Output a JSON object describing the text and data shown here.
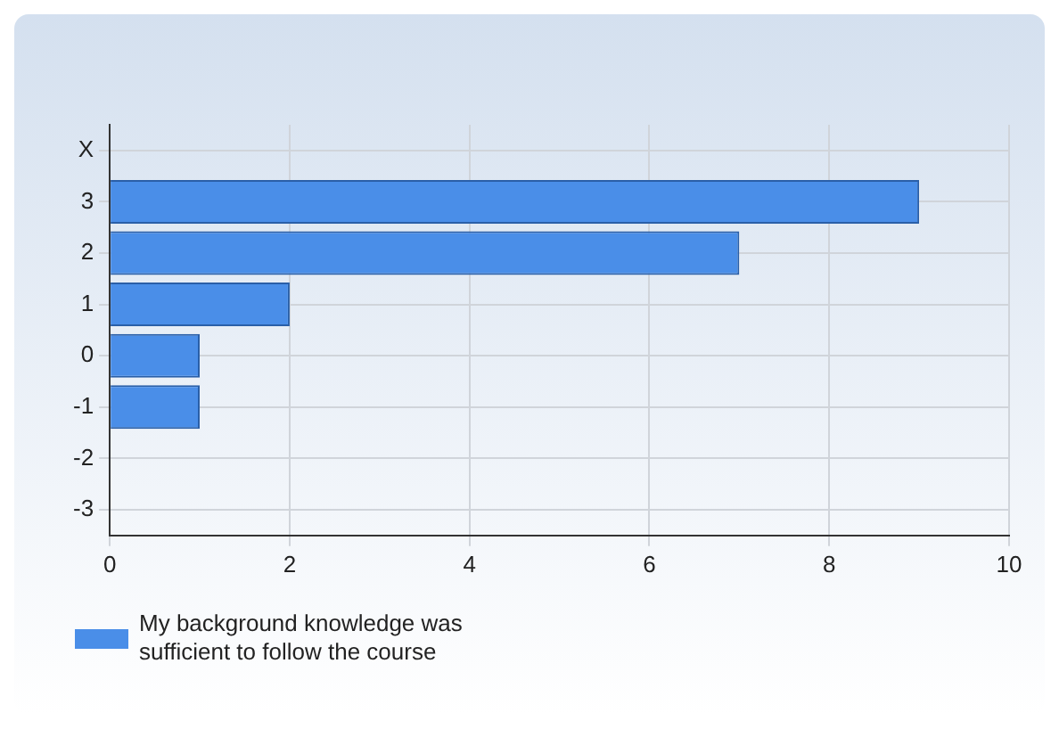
{
  "chart_data": {
    "type": "bar",
    "orientation": "horizontal",
    "categories": [
      "X",
      "3",
      "2",
      "1",
      "0",
      "-1",
      "-2",
      "-3"
    ],
    "series": [
      {
        "name": "My background knowledge was sufficient to follow the course",
        "color": "#4a8ee8",
        "values": [
          0,
          9,
          7,
          2,
          1,
          1,
          0,
          0
        ]
      }
    ],
    "xlim": [
      0,
      10
    ],
    "xticks": [
      0,
      2,
      4,
      6,
      8,
      10
    ],
    "grid": true,
    "legend": "bottom left"
  }
}
